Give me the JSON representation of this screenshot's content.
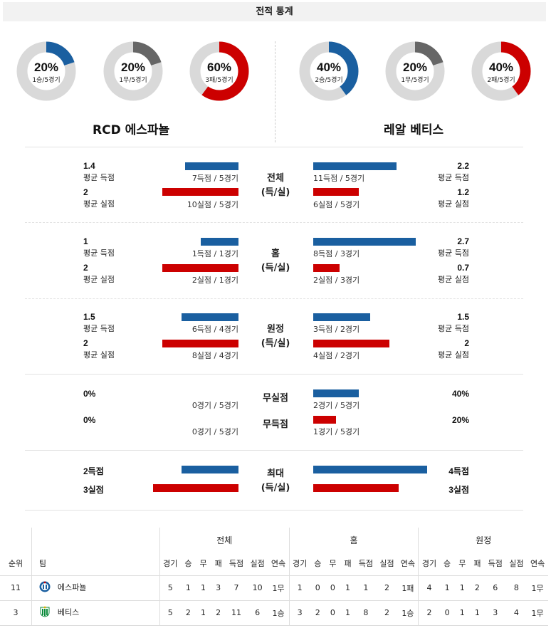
{
  "title": "전적 통계",
  "colors": {
    "blue": "#1a5fa0",
    "red": "#cc0000",
    "gray": "#666666",
    "track": "#d9d9d9"
  },
  "home_team": {
    "name": "RCD 에스파뇰",
    "donuts": [
      {
        "pct": "20%",
        "record": "1승/5경기",
        "value": 0.2,
        "color": "#1a5fa0"
      },
      {
        "pct": "20%",
        "record": "1무/5경기",
        "value": 0.2,
        "color": "#666666"
      },
      {
        "pct": "60%",
        "record": "3패/5경기",
        "value": 0.6,
        "color": "#cc0000"
      }
    ]
  },
  "away_team": {
    "name": "레알 베티스",
    "donuts": [
      {
        "pct": "40%",
        "record": "2승/5경기",
        "value": 0.4,
        "color": "#1a5fa0"
      },
      {
        "pct": "20%",
        "record": "1무/5경기",
        "value": 0.2,
        "color": "#666666"
      },
      {
        "pct": "40%",
        "record": "2패/5경기",
        "value": 0.4,
        "color": "#cc0000"
      }
    ]
  },
  "labels": {
    "avg_scored": "평균 득점",
    "avg_conceded": "평균 실점"
  },
  "sections": [
    {
      "category": [
        "전체",
        "(득/실)"
      ],
      "home": {
        "scored": "1.4",
        "scored_sub": "7득점 / 5경기",
        "conceded": "2",
        "conceded_sub": "10실점 / 5경기"
      },
      "away": {
        "scored": "2.2",
        "scored_sub": "11득점 / 5경기",
        "conceded": "1.2",
        "conceded_sub": "6실점 / 5경기"
      }
    },
    {
      "category": [
        "홈",
        "(득/실)"
      ],
      "home": {
        "scored": "1",
        "scored_sub": "1득점 / 1경기",
        "conceded": "2",
        "conceded_sub": "2실점 / 1경기"
      },
      "away": {
        "scored": "2.7",
        "scored_sub": "8득점 / 3경기",
        "conceded": "0.7",
        "conceded_sub": "2실점 / 3경기"
      }
    },
    {
      "category": [
        "원정",
        "(득/실)"
      ],
      "home": {
        "scored": "1.5",
        "scored_sub": "6득점 / 4경기",
        "conceded": "2",
        "conceded_sub": "8실점 / 4경기"
      },
      "away": {
        "scored": "1.5",
        "scored_sub": "3득점 / 2경기",
        "conceded": "2",
        "conceded_sub": "4실점 / 2경기"
      }
    }
  ],
  "clean": {
    "clean_sheet": {
      "label": "무실점",
      "home": "0%",
      "home_sub": "0경기 / 5경기",
      "away": "40%",
      "away_sub": "2경기 / 5경기"
    },
    "failed_to_score": {
      "label": "무득점",
      "home": "0%",
      "home_sub": "0경기 / 5경기",
      "away": "20%",
      "away_sub": "1경기 / 5경기"
    }
  },
  "max": {
    "category": [
      "최대",
      "(득/실)"
    ],
    "home_scored": "2득점",
    "home_conceded": "3실점",
    "away_scored": "4득점",
    "away_conceded": "3실점"
  },
  "standings": {
    "groups": [
      "전체",
      "홈",
      "원정"
    ],
    "headers": {
      "rank": "순위",
      "team": "팀"
    },
    "cols": [
      "경기",
      "승",
      "무",
      "패",
      "득점",
      "실점",
      "연속"
    ],
    "rows": [
      {
        "rank": "11",
        "team": "에스파뇰",
        "total": [
          "5",
          "1",
          "1",
          "3",
          "7",
          "10",
          "1무"
        ],
        "home": [
          "1",
          "0",
          "0",
          "1",
          "1",
          "2",
          "1패"
        ],
        "away": [
          "4",
          "1",
          "1",
          "2",
          "6",
          "8",
          "1무"
        ]
      },
      {
        "rank": "3",
        "team": "베티스",
        "total": [
          "5",
          "2",
          "1",
          "2",
          "11",
          "6",
          "1승"
        ],
        "home": [
          "3",
          "2",
          "0",
          "1",
          "8",
          "2",
          "1승"
        ],
        "away": [
          "2",
          "0",
          "1",
          "1",
          "3",
          "4",
          "1무"
        ]
      }
    ]
  }
}
